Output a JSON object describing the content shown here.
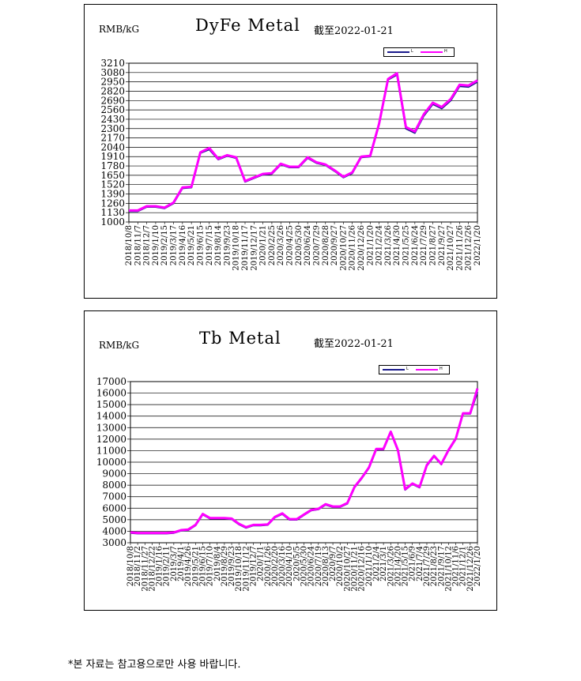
{
  "charts": [
    {
      "unit": "RMB/kG",
      "title": "DyFe Metal",
      "date_note": "截至2022-01-21",
      "legend": [
        "L",
        "H"
      ]
    },
    {
      "unit": "RMB/kG",
      "title": "Tb Metal",
      "date_note": "截至2022-01-21",
      "legend": [
        "L",
        "H"
      ]
    }
  ],
  "footnote": "*본 자료는 참고용으로만 사용 바랍니다.",
  "colors": {
    "low": "#1a1a8c",
    "high": "#ff00ff",
    "grid": "#000000"
  },
  "chart_data": [
    {
      "type": "line",
      "title": "DyFe Metal",
      "ylabel": "RMB/kG",
      "ylim": [
        1000,
        3210
      ],
      "yticks": [
        1000,
        1130,
        1260,
        1390,
        1520,
        1650,
        1780,
        1910,
        2040,
        2170,
        2300,
        2430,
        2560,
        2690,
        2820,
        2950,
        3080,
        3210
      ],
      "x_tick_labels": [
        "2018/10/8",
        "2018/11/7",
        "2018/12/7",
        "2019/1/10",
        "2019/2/15",
        "2019/3/17",
        "2019/4/16",
        "2019/5/21",
        "2019/6/15",
        "2019/7/15",
        "2019/8/14",
        "2019/9/23",
        "2019/10/18",
        "2019/11/17",
        "2019/12/17",
        "2020/1/21",
        "2020/2/25",
        "2020/3/26",
        "2020/4/25",
        "2020/5/30",
        "2020/6/24",
        "2020/7/29",
        "2020/8/28",
        "2020/9/27",
        "2020/10/27",
        "2020/11/26",
        "2020/12/26",
        "2021/1/20",
        "2021/2/24",
        "2021/3/26",
        "2021/4/30",
        "2021/5/25",
        "2021/6/24",
        "2021/7/29",
        "2021/8/27",
        "2021/9/27",
        "2021/10/27",
        "2021/11/26",
        "2021/12/26",
        "2022/1/20"
      ],
      "grid": true,
      "legend_position": "top-right",
      "x": [
        "2018/10/8",
        "2018/11/7",
        "2018/12/7",
        "2019/1/10",
        "2019/2/15",
        "2019/3/17",
        "2019/4/16",
        "2019/5/21",
        "2019/6/15",
        "2019/7/15",
        "2019/8/14",
        "2019/9/23",
        "2019/10/18",
        "2019/11/17",
        "2019/12/17",
        "2020/1/21",
        "2020/2/25",
        "2020/3/26",
        "2020/4/25",
        "2020/5/30",
        "2020/6/24",
        "2020/7/29",
        "2020/8/28",
        "2020/9/27",
        "2020/10/27",
        "2020/11/26",
        "2020/12/26",
        "2021/1/20",
        "2021/2/24",
        "2021/3/26",
        "2021/4/30",
        "2021/5/25",
        "2021/6/24",
        "2021/7/29",
        "2021/8/27",
        "2021/9/27",
        "2021/10/27",
        "2021/11/26",
        "2021/12/26",
        "2022/1/20"
      ],
      "series": [
        {
          "name": "L",
          "values": [
            1150,
            1150,
            1210,
            1210,
            1190,
            1260,
            1470,
            1480,
            1960,
            2010,
            1870,
            1920,
            1890,
            1560,
            1610,
            1660,
            1670,
            1800,
            1760,
            1760,
            1890,
            1820,
            1790,
            1710,
            1620,
            1680,
            1900,
            1910,
            2360,
            2980,
            3050,
            2300,
            2240,
            2480,
            2640,
            2580,
            2690,
            2890,
            2880,
            2950
          ]
        },
        {
          "name": "H",
          "values": [
            1160,
            1160,
            1220,
            1220,
            1200,
            1270,
            1480,
            1490,
            1970,
            2030,
            1880,
            1930,
            1900,
            1570,
            1620,
            1670,
            1680,
            1810,
            1770,
            1770,
            1900,
            1830,
            1800,
            1720,
            1630,
            1690,
            1910,
            1920,
            2370,
            2990,
            3070,
            2320,
            2260,
            2500,
            2660,
            2600,
            2710,
            2910,
            2900,
            2970
          ]
        }
      ]
    },
    {
      "type": "line",
      "title": "Tb Metal",
      "ylabel": "RMB/kG",
      "ylim": [
        3000,
        17000
      ],
      "yticks": [
        3000,
        4000,
        5000,
        6000,
        7000,
        8000,
        9000,
        10000,
        11000,
        12000,
        13000,
        14000,
        15000,
        16000,
        17000
      ],
      "x_tick_labels": [
        "2018/10/8",
        "2018/11/2",
        "2018/11/27",
        "2018/12/22",
        "2019/1/16",
        "2019/2/11",
        "2019/3/7",
        "2019/4/1",
        "2019/4/26",
        "2019/5/21",
        "2019/6/15",
        "2019/7/10",
        "2019/8/4",
        "2019/8/29",
        "2019/9/23",
        "2019/10/18",
        "2019/11/12",
        "2019/12/7",
        "2020/1/1",
        "2020/1/26",
        "2020/2/20",
        "2020/3/16",
        "2020/4/10",
        "2020/5/5",
        "2020/5/30",
        "2020/6/24",
        "2020/7/19",
        "2020/8/13",
        "2020/9/7",
        "2020/10/2",
        "2020/10/27",
        "2020/11/21",
        "2020/12/16",
        "2021/1/10",
        "2021/2/4",
        "2021/3/1",
        "2021/3/26",
        "2021/4/20",
        "2021/5/15",
        "2021/6/9",
        "2021/7/4",
        "2021/7/29",
        "2021/8/23",
        "2021/9/17",
        "2021/10/12",
        "2021/11/6",
        "2021/12/1",
        "2021/12/26",
        "2022/1/20"
      ],
      "grid": true,
      "legend_position": "top-right",
      "x": [
        "2018/10/8",
        "2018/11/2",
        "2018/11/27",
        "2018/12/22",
        "2019/1/16",
        "2019/2/11",
        "2019/3/7",
        "2019/4/1",
        "2019/4/26",
        "2019/5/21",
        "2019/6/15",
        "2019/7/10",
        "2019/8/4",
        "2019/8/29",
        "2019/9/23",
        "2019/10/18",
        "2019/11/12",
        "2019/12/7",
        "2020/1/1",
        "2020/1/26",
        "2020/2/20",
        "2020/3/16",
        "2020/4/10",
        "2020/5/5",
        "2020/5/30",
        "2020/6/24",
        "2020/7/19",
        "2020/8/13",
        "2020/9/7",
        "2020/10/2",
        "2020/10/27",
        "2020/11/21",
        "2020/12/16",
        "2021/1/10",
        "2021/2/4",
        "2021/3/1",
        "2021/3/26",
        "2021/4/20",
        "2021/5/15",
        "2021/6/9",
        "2021/7/4",
        "2021/7/29",
        "2021/8/23",
        "2021/9/17",
        "2021/10/12",
        "2021/11/6",
        "2021/12/1",
        "2021/12/26",
        "2022/1/20"
      ],
      "series": [
        {
          "name": "L",
          "values": [
            3850,
            3800,
            3800,
            3800,
            3800,
            3800,
            3850,
            4050,
            4100,
            4500,
            5450,
            5100,
            5100,
            5100,
            5050,
            4600,
            4300,
            4500,
            4500,
            4550,
            5200,
            5500,
            5000,
            5000,
            5400,
            5800,
            5900,
            6300,
            6100,
            6100,
            6400,
            7800,
            8600,
            9500,
            11100,
            11100,
            12600,
            11000,
            7600,
            8100,
            7800,
            9700,
            10500,
            9800,
            11000,
            12000,
            14200,
            14200,
            16100
          ]
        },
        {
          "name": "H",
          "values": [
            3900,
            3850,
            3850,
            3850,
            3850,
            3850,
            3900,
            4100,
            4150,
            4550,
            5500,
            5150,
            5150,
            5150,
            5100,
            4650,
            4350,
            4550,
            4550,
            4600,
            5250,
            5550,
            5050,
            5050,
            5450,
            5850,
            5950,
            6350,
            6150,
            6150,
            6450,
            7850,
            8650,
            9550,
            11150,
            11150,
            12650,
            11050,
            7650,
            8150,
            7850,
            9750,
            10550,
            9850,
            11050,
            12050,
            14250,
            14250,
            16400
          ]
        }
      ]
    }
  ]
}
